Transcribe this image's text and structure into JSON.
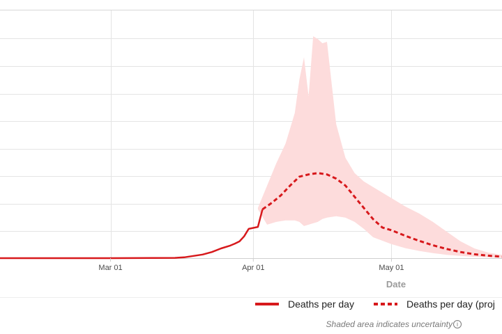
{
  "chart_data": {
    "type": "line",
    "x_axis": {
      "label": "Date",
      "range": [
        "2020-02-06",
        "2020-05-25"
      ],
      "ticks": [
        "2020-03-01",
        "2020-04-01",
        "2020-05-01"
      ],
      "tick_labels": [
        "Mar 01",
        "Apr 01",
        "May 01"
      ]
    },
    "grid": true,
    "legend_placement": "bottom",
    "series": [
      {
        "name": "Deaths per day",
        "style": "solid",
        "color": "#d7191c",
        "x": [
          "2020-02-06",
          "2020-03-01",
          "2020-03-15",
          "2020-03-17",
          "2020-03-19",
          "2020-03-21",
          "2020-03-23",
          "2020-03-25",
          "2020-03-27",
          "2020-03-28",
          "2020-03-29",
          "2020-03-30",
          "2020-03-31",
          "2020-04-02",
          "2020-04-03"
        ],
        "y": [
          0,
          0,
          0.01,
          0.03,
          0.08,
          0.13,
          0.22,
          0.35,
          0.45,
          0.52,
          0.6,
          0.78,
          1.05,
          1.12,
          1.75
        ]
      },
      {
        "name": "Deaths per day (proj",
        "style": "dashed",
        "color": "#d7191c",
        "x": [
          "2020-04-03",
          "2020-04-05",
          "2020-04-07",
          "2020-04-09",
          "2020-04-11",
          "2020-04-13",
          "2020-04-15",
          "2020-04-17",
          "2020-04-19",
          "2020-04-21",
          "2020-04-23",
          "2020-04-25",
          "2020-04-27",
          "2020-04-29",
          "2020-05-01",
          "2020-05-04",
          "2020-05-07",
          "2020-05-10",
          "2020-05-13",
          "2020-05-16",
          "2020-05-19",
          "2020-05-22",
          "2020-05-25"
        ],
        "y": [
          1.75,
          1.98,
          2.25,
          2.6,
          2.92,
          3.0,
          3.05,
          3.0,
          2.85,
          2.6,
          2.2,
          1.8,
          1.4,
          1.1,
          1.0,
          0.8,
          0.62,
          0.46,
          0.33,
          0.22,
          0.14,
          0.09,
          0.05
        ]
      }
    ],
    "uncertainty_band": {
      "color": "#fddcdc",
      "x": [
        "2020-04-02",
        "2020-04-04",
        "2020-04-06",
        "2020-04-08",
        "2020-04-10",
        "2020-04-11",
        "2020-04-12",
        "2020-04-13",
        "2020-04-14",
        "2020-04-15",
        "2020-04-16",
        "2020-04-17",
        "2020-04-19",
        "2020-04-21",
        "2020-04-23",
        "2020-04-25",
        "2020-04-27",
        "2020-05-01",
        "2020-05-04",
        "2020-05-07",
        "2020-05-10",
        "2020-05-13",
        "2020-05-16",
        "2020-05-19",
        "2020-05-22",
        "2020-05-25"
      ],
      "lower": [
        1.75,
        1.2,
        1.3,
        1.35,
        1.35,
        1.3,
        1.15,
        1.2,
        1.25,
        1.3,
        1.4,
        1.45,
        1.5,
        1.45,
        1.3,
        1.05,
        0.75,
        0.5,
        0.36,
        0.26,
        0.18,
        0.12,
        0.08,
        0.05,
        0.03,
        0.01
      ],
      "upper": [
        1.8,
        2.6,
        3.4,
        4.1,
        5.2,
        6.4,
        7.2,
        5.8,
        7.95,
        7.85,
        7.7,
        7.75,
        4.8,
        3.6,
        3.05,
        2.75,
        2.55,
        2.15,
        1.85,
        1.6,
        1.3,
        0.95,
        0.6,
        0.35,
        0.2,
        0.12
      ]
    },
    "ylim": [
      0,
      8.9
    ]
  },
  "legend": {
    "actual_label": "Deaths per day",
    "projected_label": "Deaths per day (proj"
  },
  "note": {
    "text": "Shaded area indicates uncertainty",
    "icon": "info-icon",
    "icon_glyph": "i"
  }
}
